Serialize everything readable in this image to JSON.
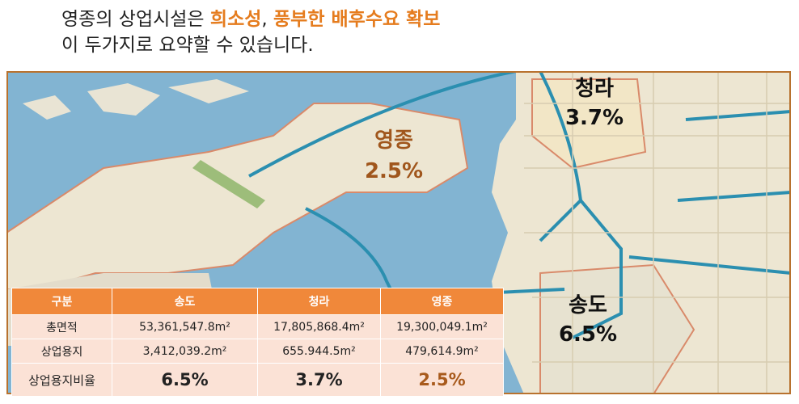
{
  "header": {
    "line1_lead": "영종의 상업시설은 ",
    "highlight1": "희소성",
    "separator": ", ",
    "highlight2": "풍부한 배후수요 확보",
    "line2": "이 두가지로 요약할 수 있습니다."
  },
  "map_labels": [
    {
      "name": "청라",
      "rate": "3.7%"
    },
    {
      "name": "영종",
      "rate": "2.5%"
    },
    {
      "name": "송도",
      "rate": "6.5%"
    }
  ],
  "table": {
    "header": [
      "구분",
      "송도",
      "청라",
      "영종"
    ],
    "rows": [
      [
        "총면적",
        "53,361,547.8m²",
        "17,805,868.4m²",
        "19,300,049.1m²"
      ],
      [
        "상업용지",
        "3,412,039.2m²",
        "655.944.5m²",
        "479,614.9m²"
      ],
      [
        "상업용지비율",
        "6.5%",
        "3.7%",
        "2.5%"
      ]
    ]
  }
}
